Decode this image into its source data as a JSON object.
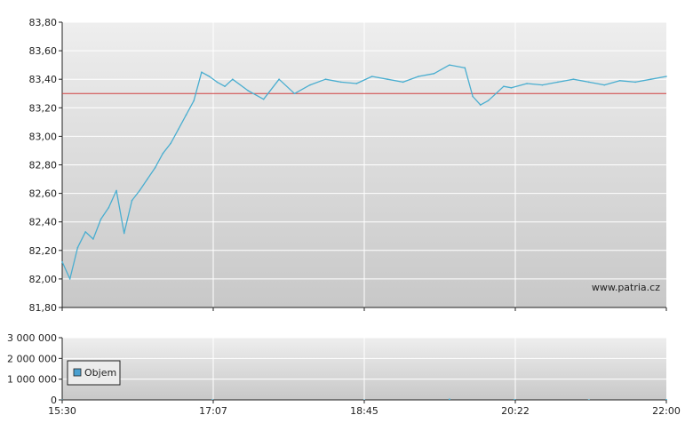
{
  "watermark": "www.patria.cz",
  "colors": {
    "price_line": "#4aaed0",
    "reference_line": "#d04040",
    "grid": "#ffffff",
    "axis": "#222222",
    "legend_swatch": "#4aa0d0"
  },
  "chart_data": [
    {
      "type": "line",
      "title": "",
      "xlabel": "",
      "ylabel": "",
      "x_ticks": [
        "15:30",
        "17:07",
        "18:45",
        "20:22",
        "22:00"
      ],
      "x_range": [
        "15:30",
        "22:00"
      ],
      "ylim": [
        81.8,
        83.8
      ],
      "y_ticks": [
        "81,80",
        "82,00",
        "82,20",
        "82,40",
        "82,60",
        "82,80",
        "83,00",
        "83,20",
        "83,40",
        "83,60",
        "83,80"
      ],
      "y_tick_values": [
        81.8,
        82.0,
        82.2,
        82.4,
        82.6,
        82.8,
        83.0,
        83.2,
        83.4,
        83.6,
        83.8
      ],
      "grid": true,
      "reference_line": 83.3,
      "series": [
        {
          "x": [
            "15:30",
            "15:35",
            "15:40",
            "15:45",
            "15:50",
            "15:55",
            "16:00",
            "16:05",
            "16:10",
            "16:15",
            "16:20",
            "16:25",
            "16:30",
            "16:35",
            "16:40",
            "16:45",
            "16:50",
            "16:55",
            "17:00",
            "17:05",
            "17:10",
            "17:15",
            "17:20",
            "17:30",
            "17:40",
            "17:50",
            "18:00",
            "18:10",
            "18:20",
            "18:30",
            "18:40",
            "18:50",
            "19:00",
            "19:10",
            "19:20",
            "19:30",
            "19:40",
            "19:50",
            "19:55",
            "20:00",
            "20:05",
            "20:10",
            "20:15",
            "20:20",
            "20:30",
            "20:40",
            "20:50",
            "21:00",
            "21:10",
            "21:20",
            "21:30",
            "21:40",
            "21:50",
            "22:00"
          ],
          "values": [
            82.12,
            82.0,
            82.22,
            82.33,
            82.28,
            82.42,
            82.5,
            82.62,
            82.32,
            82.55,
            82.62,
            82.7,
            82.78,
            82.88,
            82.95,
            83.05,
            83.15,
            83.25,
            83.45,
            83.42,
            83.38,
            83.35,
            83.4,
            83.32,
            83.26,
            83.4,
            83.3,
            83.36,
            83.4,
            83.38,
            83.37,
            83.42,
            83.4,
            83.38,
            83.42,
            83.44,
            83.5,
            83.48,
            83.28,
            83.22,
            83.25,
            83.3,
            83.35,
            83.34,
            83.37,
            83.36,
            83.38,
            83.4,
            83.38,
            83.36,
            83.39,
            83.38,
            83.4,
            83.42
          ]
        }
      ]
    },
    {
      "type": "bar",
      "title": "",
      "xlabel": "",
      "ylabel": "",
      "x_ticks": [
        "15:30",
        "17:07",
        "18:45",
        "20:22",
        "22:00"
      ],
      "ylim": [
        0,
        3000000
      ],
      "y_ticks": [
        "0",
        "1 000 000",
        "2 000 000",
        "3 000 000"
      ],
      "y_tick_values": [
        0,
        1000000,
        2000000,
        3000000
      ],
      "grid": true,
      "legend": {
        "position": "bottom-left",
        "entries": [
          "Objem"
        ]
      },
      "series": [
        {
          "name": "Objem",
          "x": [
            "15:30",
            "17:07",
            "18:45",
            "19:40",
            "20:22",
            "21:10",
            "22:00"
          ],
          "values": [
            15000,
            30000,
            20000,
            60000,
            40000,
            25000,
            35000
          ]
        }
      ]
    }
  ]
}
